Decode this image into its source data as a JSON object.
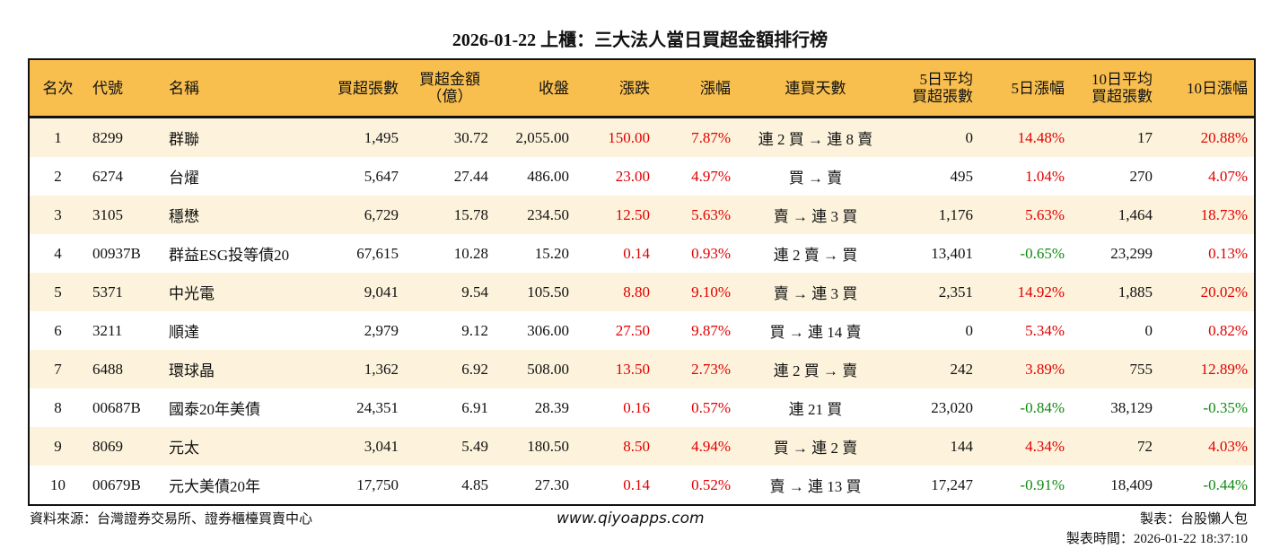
{
  "title": "2026-01-22 上櫃：三大法人當日買超金額排行榜",
  "colors": {
    "header_bg": "#f8bf4f",
    "row_alt_bg": "#fdf3dc",
    "up": "#e00000",
    "down": "#118a11"
  },
  "headers": [
    "名次",
    "代號",
    "名稱",
    "買超張數",
    "買超金額\n（億）",
    "收盤",
    "漲跌",
    "漲幅",
    "連買天數",
    "5日平均\n買超張數",
    "5日漲幅",
    "10日平均\n買超張數",
    "10日漲幅"
  ],
  "rows": [
    [
      "1",
      "8299",
      "群聯",
      "1,495",
      "30.72",
      "2,055.00",
      "150.00",
      "7.87%",
      "連 2 買 → 連 8 賣",
      "0",
      "14.48%",
      "17",
      "20.88%"
    ],
    [
      "2",
      "6274",
      "台燿",
      "5,647",
      "27.44",
      "486.00",
      "23.00",
      "4.97%",
      "買 → 賣",
      "495",
      "1.04%",
      "270",
      "4.07%"
    ],
    [
      "3",
      "3105",
      "穩懋",
      "6,729",
      "15.78",
      "234.50",
      "12.50",
      "5.63%",
      "賣 → 連 3 買",
      "1,176",
      "5.63%",
      "1,464",
      "18.73%"
    ],
    [
      "4",
      "00937B",
      "群益ESG投等債20",
      "67,615",
      "10.28",
      "15.20",
      "0.14",
      "0.93%",
      "連 2 賣 → 買",
      "13,401",
      "-0.65%",
      "23,299",
      "0.13%"
    ],
    [
      "5",
      "5371",
      "中光電",
      "9,041",
      "9.54",
      "105.50",
      "8.80",
      "9.10%",
      "賣 → 連 3 買",
      "2,351",
      "14.92%",
      "1,885",
      "20.02%"
    ],
    [
      "6",
      "3211",
      "順達",
      "2,979",
      "9.12",
      "306.00",
      "27.50",
      "9.87%",
      "買 → 連 14 賣",
      "0",
      "5.34%",
      "0",
      "0.82%"
    ],
    [
      "7",
      "6488",
      "環球晶",
      "1,362",
      "6.92",
      "508.00",
      "13.50",
      "2.73%",
      "連 2 買 → 賣",
      "242",
      "3.89%",
      "755",
      "12.89%"
    ],
    [
      "8",
      "00687B",
      "國泰20年美債",
      "24,351",
      "6.91",
      "28.39",
      "0.16",
      "0.57%",
      "連 21 買",
      "23,020",
      "-0.84%",
      "38,129",
      "-0.35%"
    ],
    [
      "9",
      "8069",
      "元太",
      "3,041",
      "5.49",
      "180.50",
      "8.50",
      "4.94%",
      "買 → 連 2 賣",
      "144",
      "4.34%",
      "72",
      "4.03%"
    ],
    [
      "10",
      "00679B",
      "元大美債20年",
      "17,750",
      "4.85",
      "27.30",
      "0.14",
      "0.52%",
      "賣 → 連 13 買",
      "17,247",
      "-0.91%",
      "18,409",
      "-0.44%"
    ]
  ],
  "footer": {
    "source": "資料來源：台灣證券交易所、證券櫃檯買賣中心",
    "website": "www.qiyoapps.com",
    "maker": "製表：台股懶人包",
    "made_time": "製表時間：2026-01-22 18:37:10"
  }
}
